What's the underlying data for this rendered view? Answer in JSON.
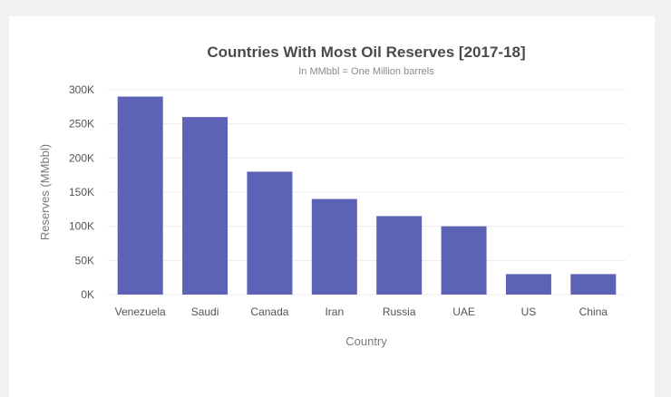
{
  "chart_data": {
    "type": "bar",
    "title": "Countries With Most Oil Reserves [2017-18]",
    "subtitle": "In MMbbl = One Million barrels",
    "xlabel": "Country",
    "ylabel": "Reserves (MMbbl)",
    "categories": [
      "Venezuela",
      "Saudi",
      "Canada",
      "Iran",
      "Russia",
      "UAE",
      "US",
      "China"
    ],
    "values": [
      290000,
      260000,
      180000,
      140000,
      115000,
      100000,
      30000,
      30000
    ],
    "ylim": [
      0,
      300000
    ],
    "yticks": [
      {
        "value": 0,
        "label": "0K"
      },
      {
        "value": 50000,
        "label": "50K"
      },
      {
        "value": 100000,
        "label": "100K"
      },
      {
        "value": 150000,
        "label": "150K"
      },
      {
        "value": 200000,
        "label": "200K"
      },
      {
        "value": 250000,
        "label": "250K"
      },
      {
        "value": 300000,
        "label": "300K"
      }
    ],
    "bar_color": "#5c62b5",
    "grid": true,
    "legend": "none"
  }
}
